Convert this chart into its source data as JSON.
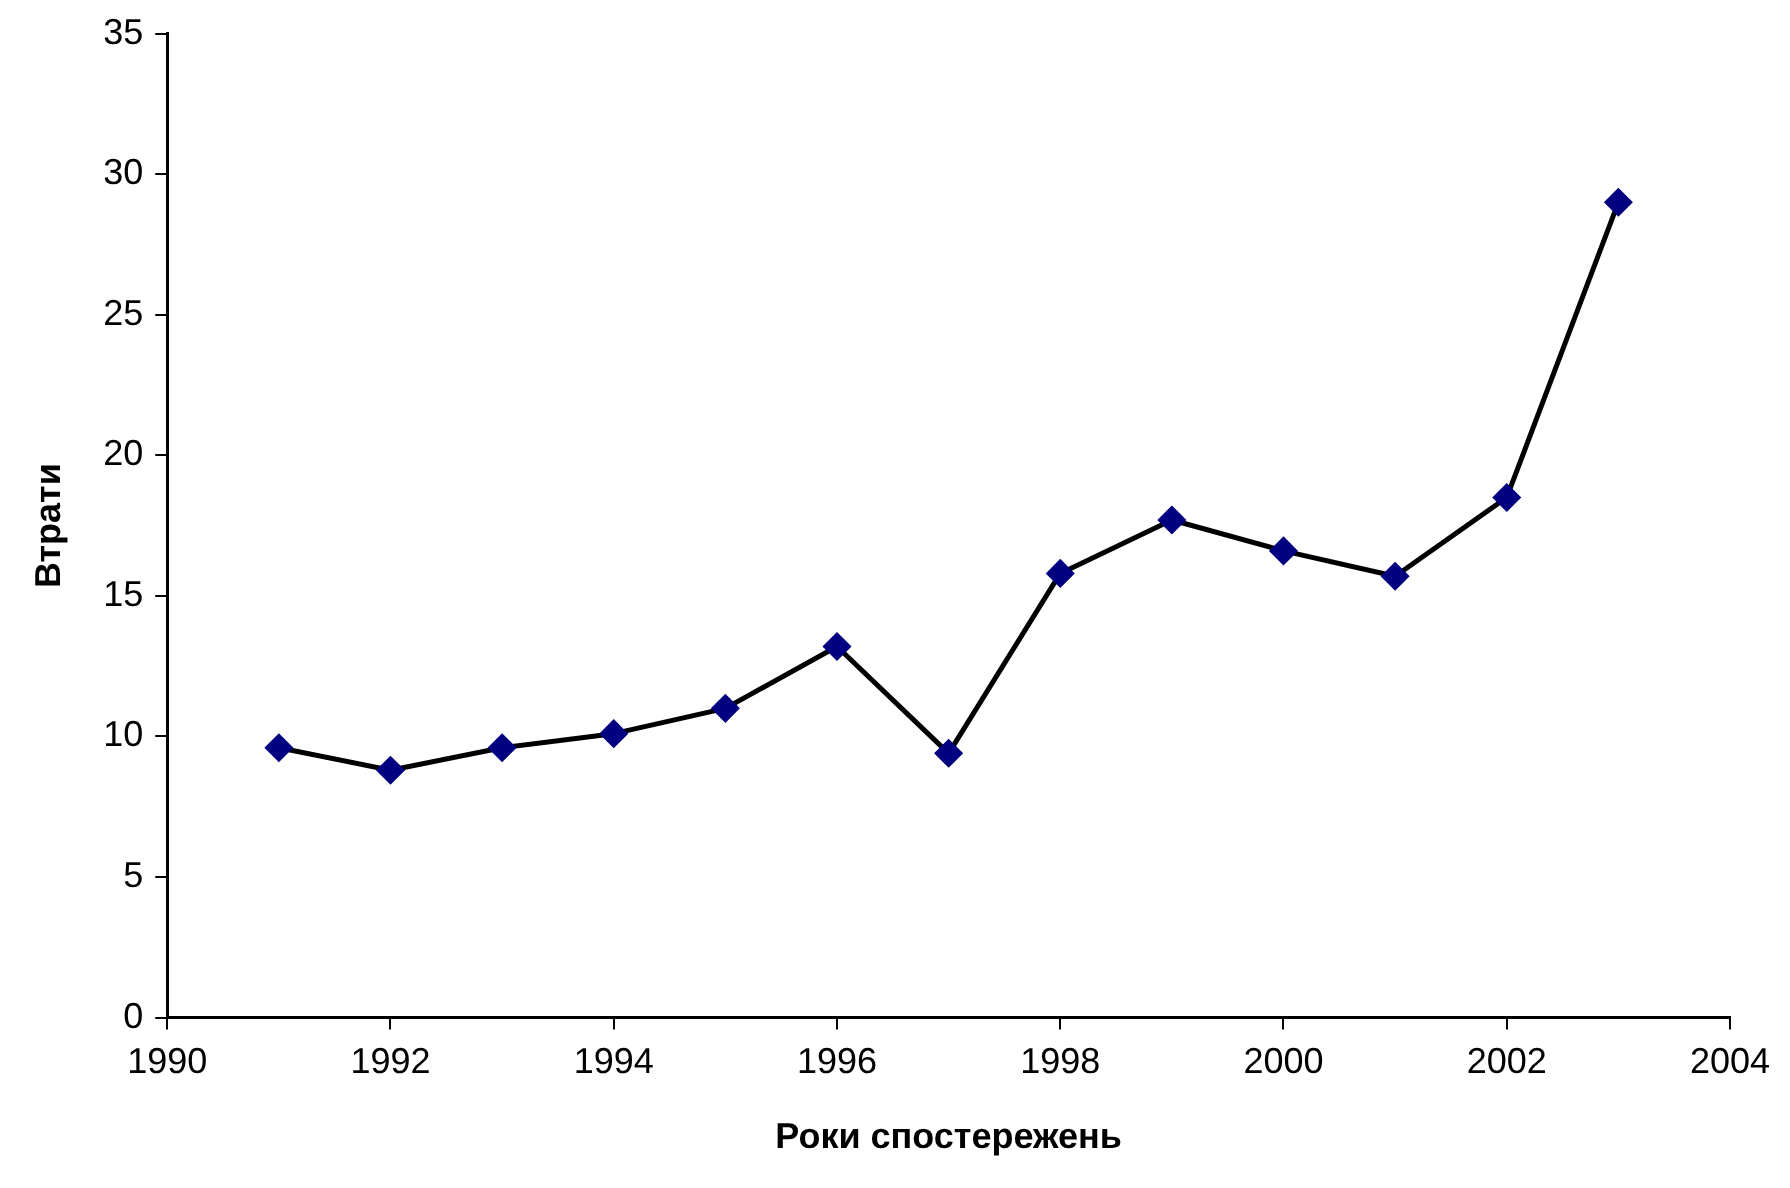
{
  "chart_data": {
    "type": "line",
    "xlabel": "Роки спостережень",
    "ylabel": "Втрати",
    "x": [
      1991,
      1992,
      1993,
      1994,
      1995,
      1996,
      1997,
      1998,
      1999,
      2000,
      2001,
      2002,
      2003
    ],
    "series": [
      {
        "color": "#000000",
        "values": [
          9.6,
          8.8,
          9.6,
          10.1,
          11.0,
          13.2,
          9.4,
          15.8,
          17.7,
          16.6,
          15.7,
          18.5,
          29.0
        ]
      }
    ],
    "marker": "diamond",
    "line_style": "solid",
    "grid": false,
    "legend": false,
    "xlim": [
      1990,
      2004
    ],
    "xticks": [
      1990,
      1992,
      1994,
      1996,
      1998,
      2000,
      2002,
      2004
    ],
    "ylim": [
      0,
      35
    ],
    "yticks": [
      0,
      5,
      10,
      15,
      20,
      25,
      30,
      35
    ]
  }
}
